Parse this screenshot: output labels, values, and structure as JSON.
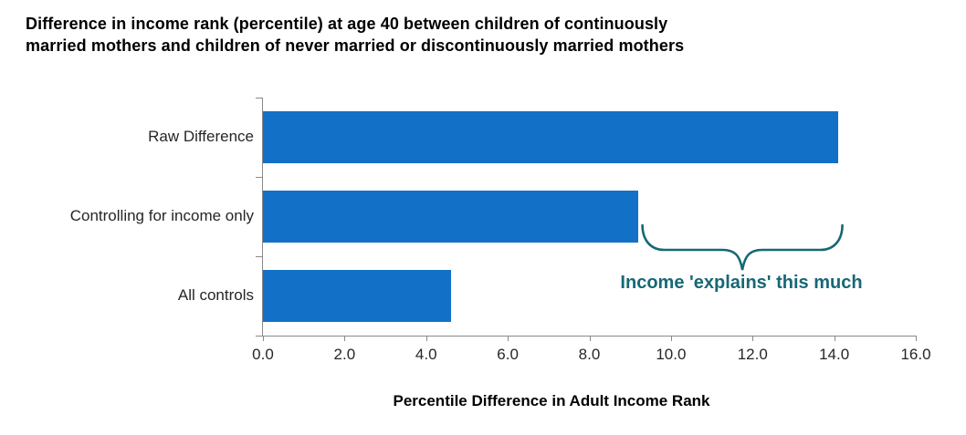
{
  "header": {
    "title_line1": "Difference in income rank (percentile) at age 40 between children of continuously",
    "title_line2": "married mothers and children of never married or discontinuously married mothers"
  },
  "chart_data": {
    "type": "bar",
    "orientation": "horizontal",
    "title": "Difference in income rank (percentile) at age 40 between children of continuously married mothers and children of never married or discontinuously married mothers",
    "categories": [
      "Raw Difference",
      "Controlling for income only",
      "All controls"
    ],
    "values": [
      14.1,
      9.2,
      4.6
    ],
    "xlabel": "Percentile Difference in Adult Income Rank",
    "ylabel": "",
    "xlim": [
      0,
      16
    ],
    "xtick_labels": [
      "0.0",
      "2.0",
      "4.0",
      "6.0",
      "8.0",
      "10.0",
      "12.0",
      "14.0",
      "16.0"
    ],
    "grid": false,
    "legend": false,
    "annotation": {
      "text": "Income 'explains' this much",
      "brace_from": 9.3,
      "brace_to": 14.2
    },
    "colors": {
      "bar": "#1271c7",
      "annotation": "#166875",
      "axis": "#898989",
      "tick_labels": "#262626",
      "title": "#000000"
    }
  }
}
